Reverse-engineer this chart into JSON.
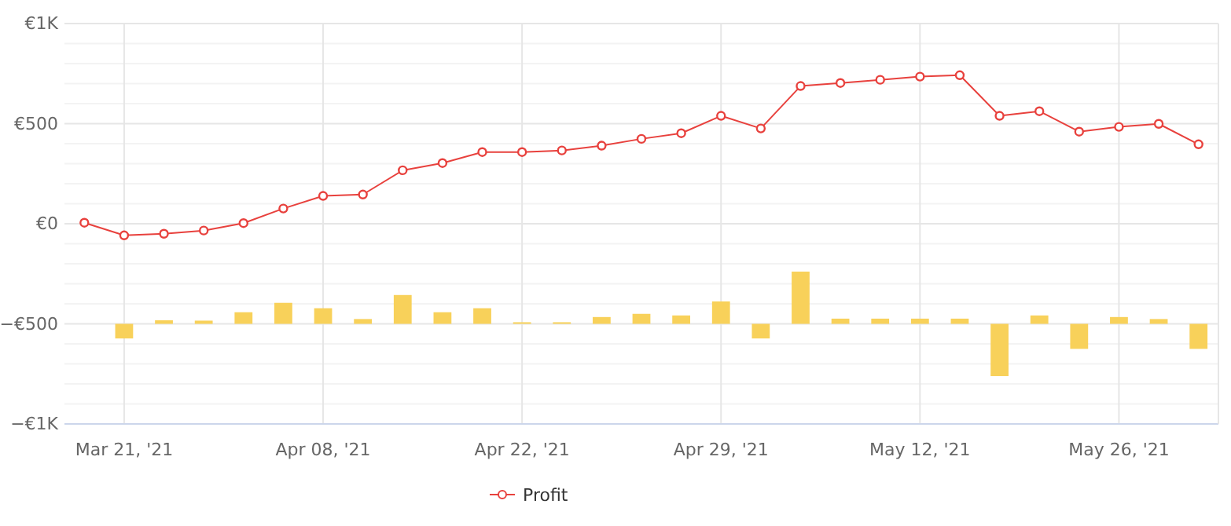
{
  "chart_data": {
    "type": "line",
    "categories": [
      null,
      "Mar 21, '21",
      null,
      null,
      null,
      null,
      "Apr 08, '21",
      null,
      null,
      null,
      null,
      "Apr 22, '21",
      null,
      null,
      null,
      null,
      "Apr 29, '21",
      null,
      null,
      null,
      null,
      "May 12, '21",
      null,
      null,
      null,
      null,
      "May 26, '21",
      null,
      null
    ],
    "series": [
      {
        "name": "Profit",
        "color": "#e8413d",
        "values": [
          5,
          -58,
          -50,
          -34,
          3,
          76,
          139,
          146,
          267,
          303,
          358,
          358,
          366,
          390,
          424,
          452,
          539,
          476,
          688,
          703,
          719,
          735,
          742,
          539,
          562,
          460,
          484,
          499,
          397
        ]
      },
      {
        "type": "bar",
        "color": "#f8d15a",
        "base": [
          null,
          -500,
          -500,
          -500,
          -500,
          -500,
          -500,
          -500,
          -500,
          -500,
          -500,
          -500,
          -500,
          -500,
          -500,
          -500,
          -500,
          -500,
          -500,
          -500,
          -500,
          -500,
          -500,
          -500,
          -500,
          -500,
          -500,
          -500,
          -500
        ],
        "values": [
          null,
          -73,
          18,
          16,
          58,
          105,
          78,
          24,
          144,
          58,
          78,
          8,
          8,
          34,
          50,
          42,
          112,
          -73,
          261,
          26,
          26,
          26,
          26,
          -261,
          42,
          -125,
          34,
          24,
          -125
        ]
      }
    ],
    "ylim": [
      -1000,
      1000
    ],
    "yticks": [
      {
        "value": -1000,
        "label": "−€1K"
      },
      {
        "value": -900,
        "label": null
      },
      {
        "value": -800,
        "label": null
      },
      {
        "value": -700,
        "label": null
      },
      {
        "value": -600,
        "label": null
      },
      {
        "value": -500,
        "label": "−€500"
      },
      {
        "value": -400,
        "label": null
      },
      {
        "value": -300,
        "label": null
      },
      {
        "value": -200,
        "label": null
      },
      {
        "value": -100,
        "label": null
      },
      {
        "value": 0,
        "label": "€0"
      },
      {
        "value": 100,
        "label": null
      },
      {
        "value": 200,
        "label": null
      },
      {
        "value": 300,
        "label": null
      },
      {
        "value": 400,
        "label": null
      },
      {
        "value": 500,
        "label": "€500"
      },
      {
        "value": 600,
        "label": null
      },
      {
        "value": 700,
        "label": null
      },
      {
        "value": 800,
        "label": null
      },
      {
        "value": 900,
        "label": null
      },
      {
        "value": 1000,
        "label": "€1K"
      }
    ],
    "grid": true,
    "legend": "bottom",
    "marker": "circle"
  }
}
